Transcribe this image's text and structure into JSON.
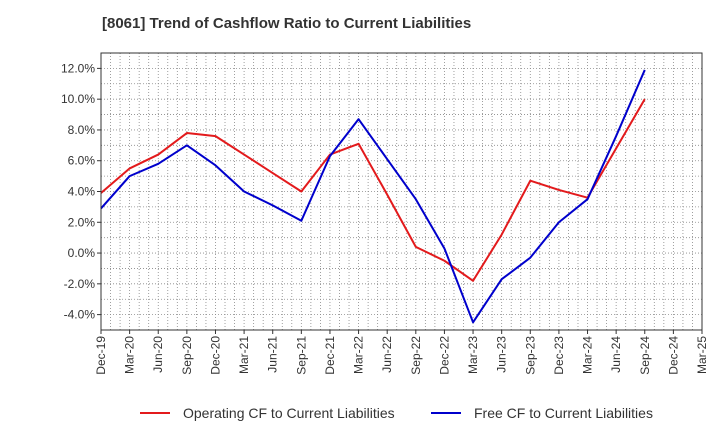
{
  "chart_data": {
    "type": "line",
    "title": "[8061]  Trend of Cashflow Ratio to Current Liabilities",
    "xlabel": "",
    "ylabel": "",
    "x": [
      "Dec-19",
      "Mar-20",
      "Jun-20",
      "Sep-20",
      "Dec-20",
      "Mar-21",
      "Jun-21",
      "Sep-21",
      "Dec-21",
      "Mar-22",
      "Jun-22",
      "Sep-22",
      "Dec-22",
      "Mar-23",
      "Jun-23",
      "Sep-23",
      "Dec-23",
      "Mar-24",
      "Jun-24",
      "Sep-24",
      "Dec-24",
      "Mar-25"
    ],
    "ylim": [
      -5.0,
      13.0
    ],
    "yticks": [
      -4.0,
      -2.0,
      0.0,
      2.0,
      4.0,
      6.0,
      8.0,
      10.0,
      12.0
    ],
    "ytick_labels": [
      "-4.0%",
      "-2.0%",
      "0.0%",
      "2.0%",
      "4.0%",
      "6.0%",
      "8.0%",
      "10.0%",
      "12.0%"
    ],
    "grid": true,
    "legend_position": "bottom",
    "series": [
      {
        "name": "Operating CF to Current Liabilities",
        "color": "#e31a1c",
        "values": [
          3.9,
          5.5,
          6.4,
          7.8,
          7.6,
          6.4,
          5.2,
          4.0,
          6.4,
          7.1,
          3.8,
          0.4,
          -0.5,
          -1.8,
          1.2,
          4.7,
          4.1,
          3.6,
          6.8,
          10.0,
          null,
          null
        ]
      },
      {
        "name": "Free CF to Current Liabilities",
        "color": "#0000cc",
        "values": [
          2.9,
          5.0,
          5.8,
          7.0,
          5.7,
          4.0,
          3.1,
          2.1,
          6.3,
          8.7,
          6.1,
          3.5,
          0.3,
          -4.5,
          -1.7,
          -0.3,
          2.0,
          3.5,
          7.6,
          11.9,
          null,
          null
        ]
      }
    ]
  }
}
